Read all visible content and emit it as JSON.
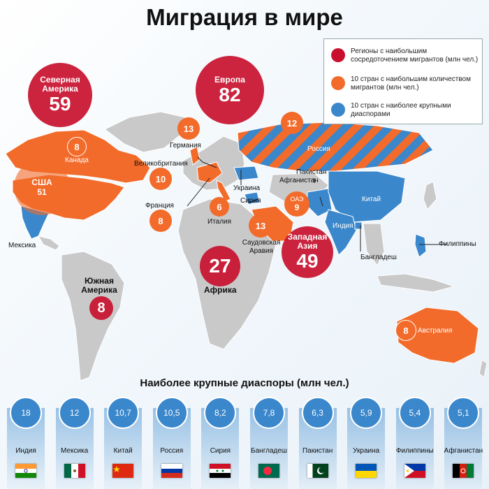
{
  "title": "Миграция в мире",
  "legend": [
    {
      "text": "Регионы с наибольшим сосредоточением мигрантов (млн чел.)",
      "color": "#c8102e"
    },
    {
      "text": "10 стран с наибольшим количеством мигрантов (млн чел.)",
      "color": "#f26b2a"
    },
    {
      "text": "10 стран с наиболее крупными диаспорами",
      "color": "#3a87cc"
    }
  ],
  "regions": [
    {
      "name": "Северная Америка",
      "value": "59"
    },
    {
      "name": "Европа",
      "value": "82"
    },
    {
      "name": "Африка",
      "value": "27"
    },
    {
      "name": "Западная Азия",
      "value": "49"
    },
    {
      "name": "Южная Америка",
      "value": "8"
    }
  ],
  "migrant_countries": [
    {
      "name": "США",
      "value": "51"
    },
    {
      "name": "Канада",
      "value": "8"
    },
    {
      "name": "Германия",
      "value": "13"
    },
    {
      "name": "Великобритания",
      "value": "10"
    },
    {
      "name": "Франция",
      "value": "8"
    },
    {
      "name": "Италия",
      "value": "6"
    },
    {
      "name": "Россия",
      "value": "12"
    },
    {
      "name": "Саудовская Аравия",
      "value": "13"
    },
    {
      "name": "ОАЭ",
      "value": "9"
    },
    {
      "name": "Австралия",
      "value": "8"
    }
  ],
  "diaspora_labels": {
    "mexico": "Мексика",
    "ukraine": "Украина",
    "syria": "Сирия",
    "pakistan": "Пакистан",
    "afghanistan": "Афганистан",
    "china": "Китай",
    "india": "Индия",
    "bangladesh": "Бангладеш",
    "philippines": "Филиппины"
  },
  "diaspora_title": "Наиболее крупные диаспоры (млн чел.)",
  "diasporas": [
    {
      "country": "Индия",
      "value": "18",
      "flag": "india-flag"
    },
    {
      "country": "Мексика",
      "value": "12",
      "flag": "mexico-flag"
    },
    {
      "country": "Китай",
      "value": "10,7",
      "flag": "china-flag"
    },
    {
      "country": "Россия",
      "value": "10,5",
      "flag": "russia-flag"
    },
    {
      "country": "Сирия",
      "value": "8,2",
      "flag": "syria-flag"
    },
    {
      "country": "Бангладеш",
      "value": "7,8",
      "flag": "bangladesh-flag"
    },
    {
      "country": "Пакистан",
      "value": "6,3",
      "flag": "pakistan-flag"
    },
    {
      "country": "Украина",
      "value": "5,9",
      "flag": "ukraine-flag"
    },
    {
      "country": "Филиппины",
      "value": "5,4",
      "flag": "philippines-flag"
    },
    {
      "country": "Афганистан",
      "value": "5,1",
      "flag": "afghanistan-flag"
    }
  ],
  "colors": {
    "region": "#c8102e",
    "migrants": "#f26b2a",
    "diaspora": "#3a87cc",
    "land": "#c9c9c9"
  }
}
